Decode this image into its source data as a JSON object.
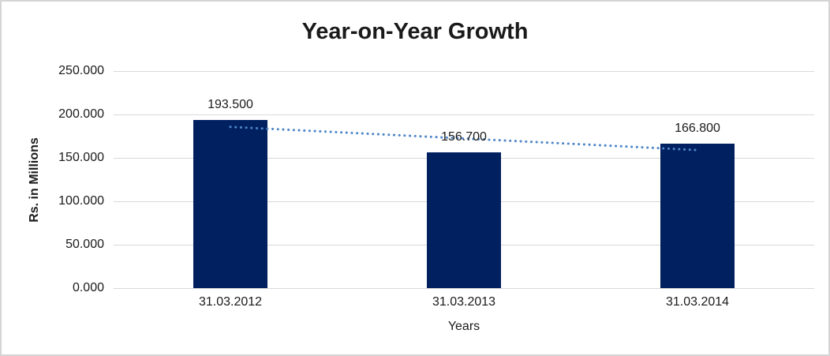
{
  "chart_data": {
    "type": "bar",
    "title": "Year-on-Year Growth",
    "xlabel": "Years",
    "ylabel": "Rs. in Millions",
    "categories": [
      "31.03.2012",
      "31.03.2013",
      "31.03.2014"
    ],
    "values": [
      193.5,
      156.7,
      166.8
    ],
    "value_labels": [
      "193.500",
      "156.700",
      "166.800"
    ],
    "ylim": [
      0,
      250
    ],
    "ytick_step": 50,
    "ytick_labels": [
      "0.000",
      "50.000",
      "100.000",
      "150.000",
      "200.000",
      "250.000"
    ],
    "grid": true,
    "legend": "none",
    "trendline": {
      "type": "linear",
      "style": "dotted",
      "start_value": 185.7,
      "end_value": 159.0
    },
    "colors": {
      "bar": "#002060",
      "trendline": "#4e86c8",
      "gridline": "#d9d9d9",
      "text": "#1a1a1a",
      "border": "#d5d5d5",
      "background": "#ffffff"
    }
  }
}
